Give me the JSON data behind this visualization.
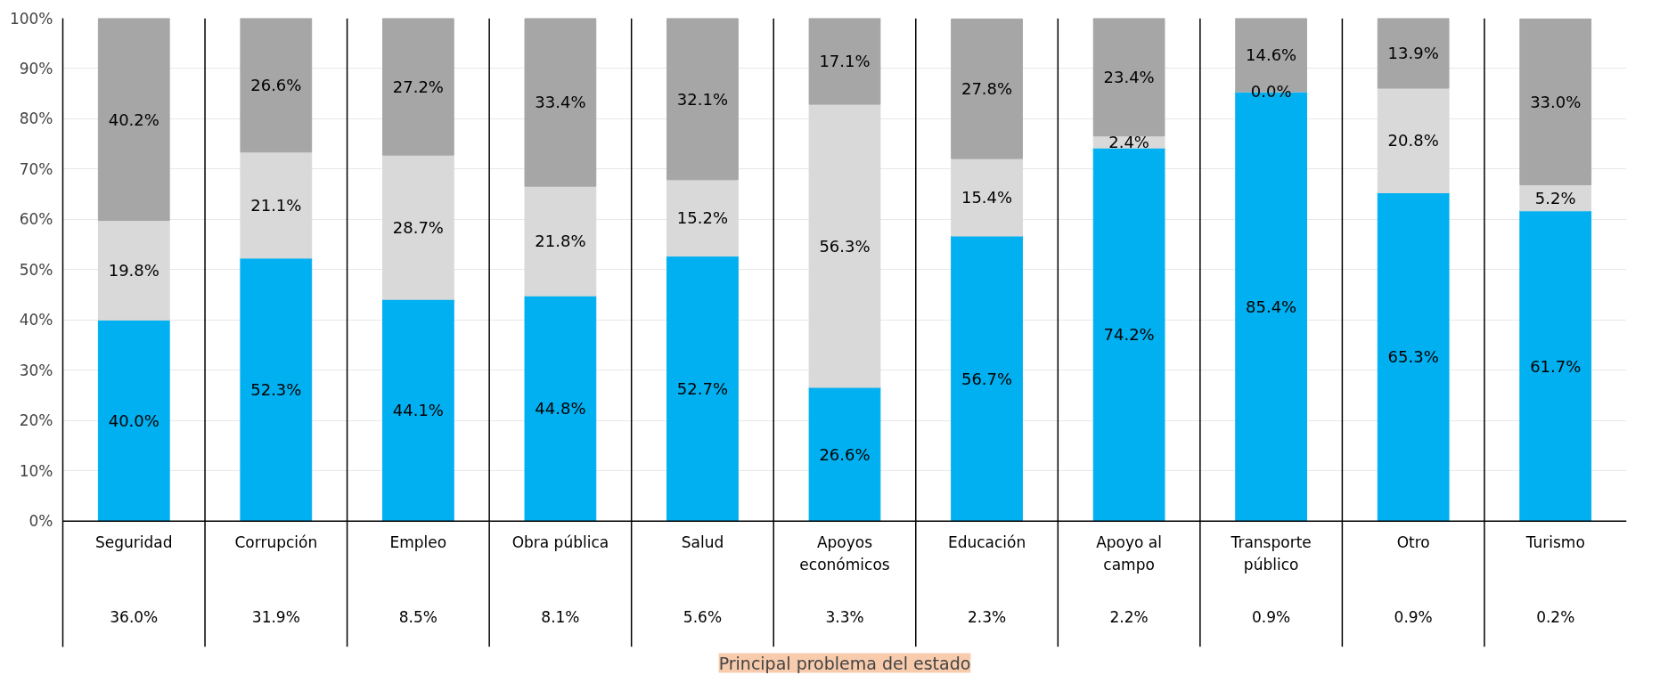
{
  "chart_data": {
    "type": "bar",
    "stacked": true,
    "xlabel": "Principal problema del estado",
    "categories": [
      "Seguridad",
      "Corrupción",
      "Empleo",
      "Obra pública",
      "Salud",
      "Apoyos económicos",
      "Educación",
      "Apoyo al campo",
      "Transporte público",
      "Otro",
      "Turismo"
    ],
    "series": [
      {
        "color": "#00b0f0",
        "values": [
          40.0,
          52.3,
          44.1,
          44.8,
          52.7,
          26.6,
          56.7,
          74.2,
          85.4,
          65.3,
          61.7
        ],
        "value_labels": [
          "40.0%",
          "52.3%",
          "44.1%",
          "44.8%",
          "52.7%",
          "26.6%",
          "56.7%",
          "74.2%",
          "85.4%",
          "65.3%",
          "61.7%"
        ]
      },
      {
        "color": "#d9d9d9",
        "values": [
          19.8,
          21.1,
          28.7,
          21.8,
          15.2,
          56.3,
          15.4,
          2.4,
          0.0,
          20.8,
          5.2
        ],
        "value_labels": [
          "19.8%",
          "21.1%",
          "28.7%",
          "21.8%",
          "15.2%",
          "56.3%",
          "15.4%",
          "2.4%",
          "0.0%",
          "20.8%",
          "5.2%"
        ]
      },
      {
        "color": "#a6a6a6",
        "values": [
          40.2,
          26.6,
          27.2,
          33.4,
          32.1,
          17.1,
          27.8,
          23.4,
          14.6,
          13.9,
          33.0
        ],
        "value_labels": [
          "40.2%",
          "26.6%",
          "27.2%",
          "33.4%",
          "32.1%",
          "17.1%",
          "27.8%",
          "23.4%",
          "14.6%",
          "13.9%",
          "33.0%"
        ]
      }
    ],
    "ylim": [
      0,
      100
    ],
    "yticks": [
      {
        "value": 0,
        "label": "0%"
      },
      {
        "value": 10,
        "label": "10%"
      },
      {
        "value": 20,
        "label": "20%"
      },
      {
        "value": 30,
        "label": "30%"
      },
      {
        "value": 40,
        "label": "40%"
      },
      {
        "value": 50,
        "label": "50%"
      },
      {
        "value": 60,
        "label": "60%"
      },
      {
        "value": 70,
        "label": "70%"
      },
      {
        "value": 80,
        "label": "80%"
      },
      {
        "value": 90,
        "label": "90%"
      },
      {
        "value": 100,
        "label": "100%"
      }
    ],
    "grid": "y",
    "annotations": [
      "36.0%",
      "31.9%",
      "8.5%",
      "8.1%",
      "5.6%",
      "3.3%",
      "2.3%",
      "2.2%",
      "0.9%",
      "0.9%",
      "0.2%"
    ]
  }
}
